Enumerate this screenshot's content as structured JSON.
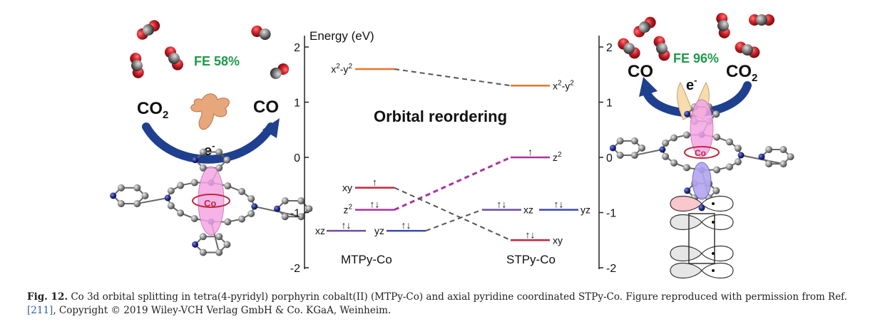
{
  "figure": {
    "left_panel": {
      "fe": "FE 58%",
      "reactant": "CO",
      "reactant_sub": "2",
      "product": "CO",
      "electron": "e",
      "electron_sup": "-",
      "metal": "Co"
    },
    "right_panel": {
      "fe": "FE 96%",
      "product": "CO",
      "byproduct": "CO",
      "byproduct_sub": "2",
      "electron": "e",
      "electron_sup": "-",
      "metal": "Co"
    },
    "energy_axis": {
      "title": "Energy (eV)",
      "left_ticks": [
        "2",
        "1",
        "0",
        "-1",
        "-2"
      ],
      "right_ticks": [
        "2",
        "1",
        "0",
        "-1",
        "-2"
      ]
    },
    "center_title": "Orbital reordering",
    "mtpy_label": "MTPy-Co",
    "stpy_label": "STPy-Co",
    "orbitals": {
      "mtpy": {
        "x2y2": {
          "base": "x",
          "sup1": "2",
          "mid": "-y",
          "sup2": "2",
          "energy": 1.6
        },
        "xy": {
          "label": "xy",
          "energy": -0.55,
          "electrons": "↑"
        },
        "z2": {
          "base": "z",
          "sup": "2",
          "energy": -0.95,
          "electrons": "↑↓"
        },
        "xz": {
          "label": "xz",
          "energy": -1.33,
          "electrons": "↑↓"
        },
        "yz": {
          "label": "yz",
          "energy": -1.33,
          "electrons": "↑↓"
        }
      },
      "stpy": {
        "x2y2": {
          "base": "x",
          "sup1": "2",
          "mid": "-y",
          "sup2": "2",
          "energy": 1.3
        },
        "z2": {
          "base": "z",
          "sup": "2",
          "energy": 0.0,
          "electrons": "↑"
        },
        "xz": {
          "label": "xz",
          "energy": -0.95,
          "electrons": "↑↓"
        },
        "yz": {
          "label": "yz",
          "energy": -0.95,
          "electrons": "↑↓"
        },
        "xy": {
          "label": "xy",
          "energy": -1.5,
          "electrons": "↑↓"
        }
      }
    },
    "colors": {
      "x2y2": "#e8752a",
      "xy": "#c0283d",
      "z2": "#a8359a",
      "xz": "#6a4fa0",
      "yz": "#3b4aa8",
      "arrow": "#1f3f8f",
      "fe": "#1f9a4a",
      "co_red": "#d0232a",
      "co_gray": "#8a8a8a",
      "orbital_pink": "#f4a6e4"
    }
  },
  "caption": {
    "label": "Fig. 12.",
    "text": " Co 3d orbital splitting in tetra(4-pyridyl) porphyrin cobalt(II) (MTPy-Co) and axial pyridine coordinated STPy-Co. Figure reproduced with permission from Ref. ",
    "ref": "[211]",
    "text2": ", Copyright © 2019 Wiley-VCH Verlag GmbH & Co. KGaA, Weinheim."
  }
}
